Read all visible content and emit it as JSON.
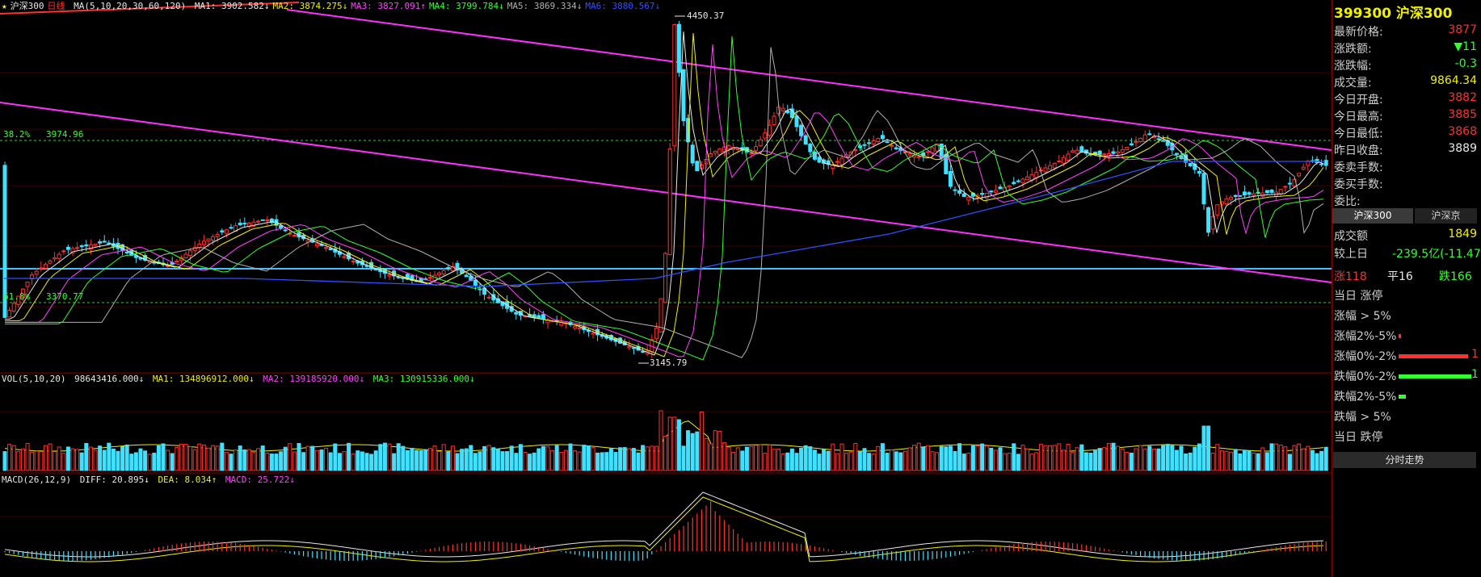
{
  "main_chart": {
    "title_star": "★",
    "symbol": "沪深300",
    "period": "日线",
    "ma_params": "MA(5,10,20,30,60,120)",
    "ma": [
      {
        "label": "MA1:",
        "value": "3902.582↓",
        "color": "#e8e8e8"
      },
      {
        "label": "MA2:",
        "value": "3874.275↓",
        "color": "#f0f000"
      },
      {
        "label": "MA3:",
        "value": "3827.091↑",
        "color": "#ff40ff"
      },
      {
        "label": "MA4:",
        "value": "3799.784↓",
        "color": "#30ff30"
      },
      {
        "label": "MA5:",
        "value": "3869.334↓",
        "color": "#b0b0b0"
      },
      {
        "label": "MA6:",
        "value": "3880.567↓",
        "color": "#3050ff"
      }
    ],
    "fib_382_label": "38.2%",
    "fib_382_value": "3974.96",
    "fib_618_label": "61.8%",
    "fib_618_value": "3370.77",
    "high_label": "4450.37",
    "low_label": "3145.79"
  },
  "volume_panel": {
    "params": "VOL(5,10,20)",
    "value": "98643416.000↓",
    "ma1": "MA1: 134896912.000↓",
    "ma2": "MA2: 139185920.000↓",
    "ma3": "MA3: 130915336.000↓"
  },
  "macd_panel": {
    "params": "MACD(26,12,9)",
    "diff": "DIFF: 20.895↓",
    "dea": "DEA: 8.034↑",
    "macd": "MACD: 25.722↓"
  },
  "quote_panel": {
    "code": "399300",
    "name": "沪深300",
    "rows": [
      {
        "label": "最新价格:",
        "value": "3877",
        "color": "#ff3030"
      },
      {
        "label": "涨跌额:",
        "value": "▼11",
        "color": "#30ff30"
      },
      {
        "label": "涨跌幅:",
        "value": "-0.3",
        "color": "#30ff30"
      },
      {
        "label": "成交量:",
        "value": "9864.34",
        "color": "#f0f000"
      },
      {
        "label": "今日开盘:",
        "value": "3882",
        "color": "#ff3030"
      },
      {
        "label": "今日最高:",
        "value": "3885",
        "color": "#ff3030"
      },
      {
        "label": "今日最低:",
        "value": "3868",
        "color": "#ff3030"
      },
      {
        "label": "昨日收盘:",
        "value": "3889",
        "color": "#e8e8e8"
      },
      {
        "label": "委卖手数:",
        "value": "",
        "color": "#e8e8e8"
      },
      {
        "label": "委买手数:",
        "value": "",
        "color": "#e8e8e8"
      },
      {
        "label": "委比:",
        "value": "",
        "color": "#e8e8e8"
      }
    ],
    "tab_hs300": "沪深300",
    "tab_hsj": "沪深京",
    "turnover_label": "成交额",
    "turnover_value": "1849",
    "vs_yesterday_label": "较上日",
    "vs_yesterday_value": "-239.5亿(-11.47",
    "up_label": "涨118",
    "flat_label": "平16",
    "down_label": "跌166",
    "dist": [
      {
        "label": "当日 涨停",
        "frac": 0,
        "color": "#ff3030"
      },
      {
        "label": "涨幅 > 5%",
        "frac": 0,
        "color": "#ff3030"
      },
      {
        "label": "涨幅2%-5%",
        "frac": 0.03,
        "color": "#ff3030"
      },
      {
        "label": "涨幅0%-2%",
        "frac": 0.95,
        "color": "#ff3030",
        "count": "1"
      },
      {
        "label": "跌幅0%-2%",
        "frac": 1.0,
        "color": "#30ff30",
        "count": "1"
      },
      {
        "label": "跌幅2%-5%",
        "frac": 0.1,
        "color": "#30ff30"
      },
      {
        "label": "跌幅 > 5%",
        "frac": 0,
        "color": "#30ff30"
      },
      {
        "label": "当日 跌停",
        "frac": 0,
        "color": "#30ff30"
      }
    ],
    "intraday_button": "分时走势"
  }
}
